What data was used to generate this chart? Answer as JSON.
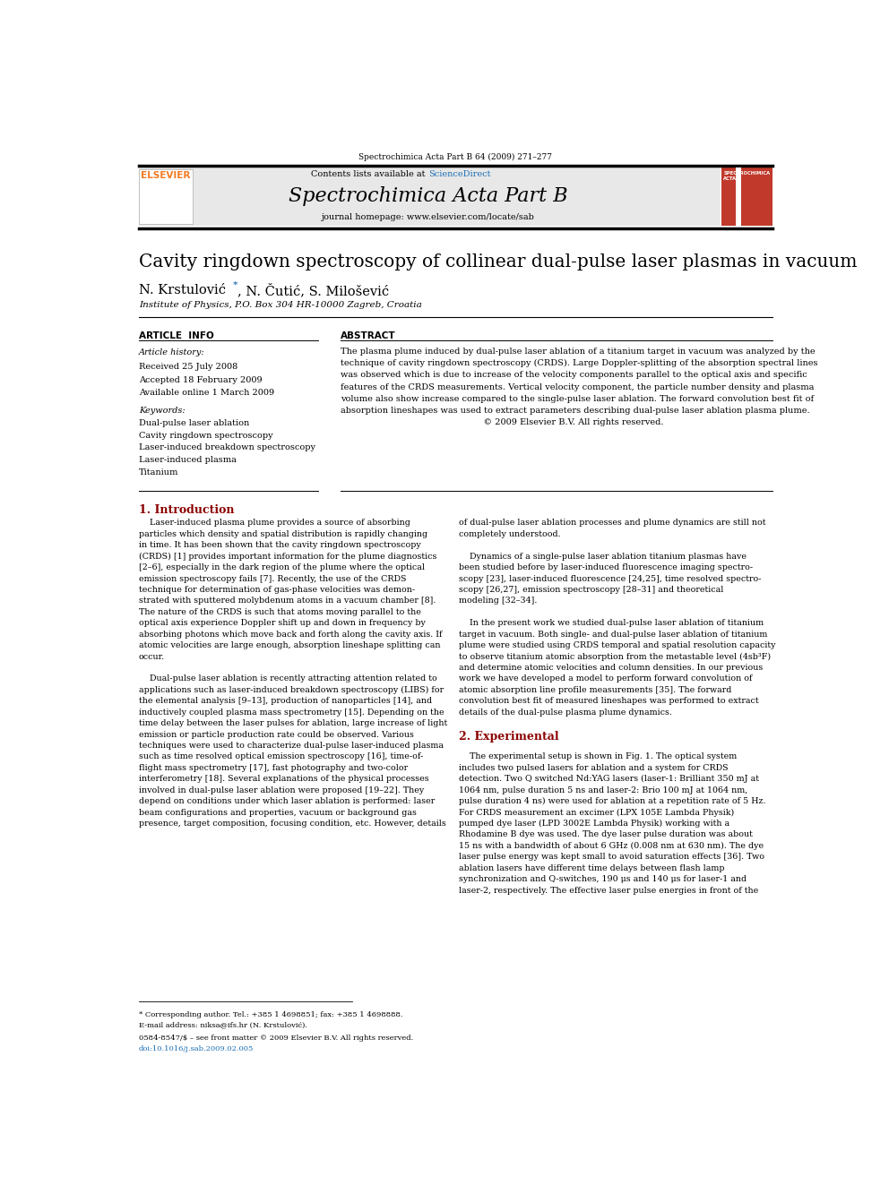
{
  "page_width": 9.92,
  "page_height": 13.23,
  "bg_color": "#ffffff",
  "journal_header_text": "Spectrochimica Acta Part B 64 (2009) 271–277",
  "header_contents_text": "Contents lists available at",
  "header_sciencedirect": "ScienceDirect",
  "header_journal_name": "Spectrochimica Acta Part B",
  "header_homepage": "journal homepage: www.elsevier.com/locate/sab",
  "title": "Cavity ringdown spectroscopy of collinear dual-pulse laser plasmas in vacuum",
  "authors_part1": "N. Krstulović ",
  "authors_star": "*",
  "authors_part2": ", N. Čutić, S. Milošević",
  "affiliation": "Institute of Physics, P.O. Box 304 HR-10000 Zagreb, Croatia",
  "article_info_label": "ARTICLE  INFO",
  "abstract_label": "ABSTRACT",
  "article_history_label": "Article history:",
  "received": "Received 25 July 2008",
  "accepted": "Accepted 18 February 2009",
  "available": "Available online 1 March 2009",
  "keywords_label": "Keywords:",
  "keywords": [
    "Dual-pulse laser ablation",
    "Cavity ringdown spectroscopy",
    "Laser-induced breakdown spectroscopy",
    "Laser-induced plasma",
    "Titanium"
  ],
  "abstract_lines": [
    "The plasma plume induced by dual-pulse laser ablation of a titanium target in vacuum was analyzed by the",
    "technique of cavity ringdown spectroscopy (CRDS). Large Doppler-splitting of the absorption spectral lines",
    "was observed which is due to increase of the velocity components parallel to the optical axis and specific",
    "features of the CRDS measurements. Vertical velocity component, the particle number density and plasma",
    "volume also show increase compared to the single-pulse laser ablation. The forward convolution best fit of",
    "absorption lineshapes was used to extract parameters describing dual-pulse laser ablation plasma plume.",
    "                                                   © 2009 Elsevier B.V. All rights reserved."
  ],
  "section1_title": "1. Introduction",
  "left_col_text": [
    "    Laser-induced plasma plume provides a source of absorbing",
    "particles which density and spatial distribution is rapidly changing",
    "in time. It has been shown that the cavity ringdown spectroscopy",
    "(CRDS) [1] provides important information for the plume diagnostics",
    "[2–6], especially in the dark region of the plume where the optical",
    "emission spectroscopy fails [7]. Recently, the use of the CRDS",
    "technique for determination of gas-phase velocities was demon-",
    "strated with sputtered molybdenum atoms in a vacuum chamber [8].",
    "The nature of the CRDS is such that atoms moving parallel to the",
    "optical axis experience Doppler shift up and down in frequency by",
    "absorbing photons which move back and forth along the cavity axis. If",
    "atomic velocities are large enough, absorption lineshape splitting can",
    "occur.",
    "",
    "    Dual-pulse laser ablation is recently attracting attention related to",
    "applications such as laser-induced breakdown spectroscopy (LIBS) for",
    "the elemental analysis [9–13], production of nanoparticles [14], and",
    "inductively coupled plasma mass spectrometry [15]. Depending on the",
    "time delay between the laser pulses for ablation, large increase of light",
    "emission or particle production rate could be observed. Various",
    "techniques were used to characterize dual-pulse laser-induced plasma",
    "such as time resolved optical emission spectroscopy [16], time-of-",
    "flight mass spectrometry [17], fast photography and two-color",
    "interferometry [18]. Several explanations of the physical processes",
    "involved in dual-pulse laser ablation were proposed [19–22]. They",
    "depend on conditions under which laser ablation is performed: laser",
    "beam configurations and properties, vacuum or background gas",
    "presence, target composition, focusing condition, etc. However, details"
  ],
  "right_col_text": [
    "of dual-pulse laser ablation processes and plume dynamics are still not",
    "completely understood.",
    "",
    "    Dynamics of a single-pulse laser ablation titanium plasmas have",
    "been studied before by laser-induced fluorescence imaging spectro-",
    "scopy [23], laser-induced fluorescence [24,25], time resolved spectro-",
    "scopy [26,27], emission spectroscopy [28–31] and theoretical",
    "modeling [32–34].",
    "",
    "    In the present work we studied dual-pulse laser ablation of titanium",
    "target in vacuum. Both single- and dual-pulse laser ablation of titanium",
    "plume were studied using CRDS temporal and spatial resolution capacity",
    "to observe titanium atomic absorption from the metastable level (4sb³F)",
    "and determine atomic velocities and column densities. In our previous",
    "work we have developed a model to perform forward convolution of",
    "atomic absorption line profile measurements [35]. The forward",
    "convolution best fit of measured lineshapes was performed to extract",
    "details of the dual-pulse plasma plume dynamics.",
    "",
    "2. Experimental",
    "",
    "    The experimental setup is shown in Fig. 1. The optical system",
    "includes two pulsed lasers for ablation and a system for CRDS",
    "detection. Two Q switched Nd:YAG lasers (laser-1: Brilliant 350 mJ at",
    "1064 nm, pulse duration 5 ns and laser-2: Brio 100 mJ at 1064 nm,",
    "pulse duration 4 ns) were used for ablation at a repetition rate of 5 Hz.",
    "For CRDS measurement an excimer (LPX 105E Lambda Physik)",
    "pumped dye laser (LPD 3002E Lambda Physik) working with a",
    "Rhodamine B dye was used. The dye laser pulse duration was about",
    "15 ns with a bandwidth of about 6 GHz (0.008 nm at 630 nm). The dye",
    "laser pulse energy was kept small to avoid saturation effects [36]. Two",
    "ablation lasers have different time delays between flash lamp",
    "synchronization and Q-switches, 190 μs and 140 μs for laser-1 and",
    "laser-2, respectively. The effective laser pulse energies in front of the"
  ],
  "section2_title": "2. Experimental",
  "footer_note": "* Corresponding author. Tel.: +385 1 4698851; fax: +385 1 4698888.",
  "footer_email": "E-mail address: niksa@ifs.hr (N. Krstulović).",
  "footer_license": "0584-8547/$ – see front matter © 2009 Elsevier B.V. All rights reserved.",
  "footer_doi": "doi:10.1016/j.sab.2009.02.005",
  "header_bg": "#e8e8e8",
  "elsevier_logo_color": "#f47920",
  "link_color": "#1a6eb5",
  "section_title_color": "#8b0000",
  "red_box_color": "#c0392b",
  "text_color": "#000000"
}
